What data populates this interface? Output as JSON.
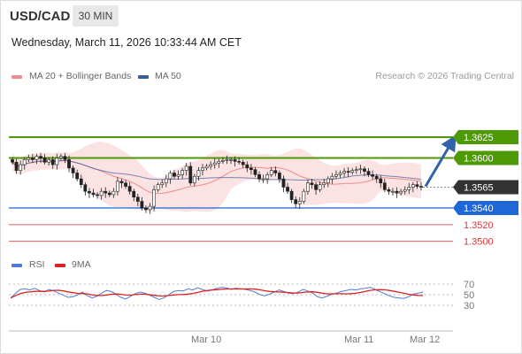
{
  "header": {
    "pair": "USD/CAD",
    "timeframe": "30 MIN",
    "datetime": "Wednesday, March 11, 2026 10:33:44 AM CET"
  },
  "price_legend": [
    {
      "label": "MA 20 + Bollinger Bands",
      "color": "#f08a8a"
    },
    {
      "label": "MA 50",
      "color": "#3b5b9a"
    }
  ],
  "credit": "Research © 2026 Trading Central",
  "price_levels": [
    {
      "value": "1.3625",
      "kind": "resistance",
      "color": "#4e9a06"
    },
    {
      "value": "1.3600",
      "kind": "resistance",
      "color": "#4e9a06"
    },
    {
      "value": "1.3565",
      "kind": "current",
      "color": "#333333"
    },
    {
      "value": "1.3540",
      "kind": "pivot",
      "color": "#1f66d6"
    },
    {
      "value": "1.3520",
      "kind": "support",
      "color": "#d63a3a"
    },
    {
      "value": "1.3500",
      "kind": "support",
      "color": "#d63a3a"
    }
  ],
  "rsi_legend": [
    {
      "label": "RSI",
      "color": "#4f7bd6"
    },
    {
      "label": "9MA",
      "color": "#dd2222"
    }
  ],
  "rsi_levels": [
    "70",
    "50",
    "30"
  ],
  "time_labels": [
    "Mar 10",
    "Mar 11",
    "Mar 12"
  ],
  "chart_data": {
    "type": "candlestick",
    "price_axis_labels": [
      "1.3625",
      "1.3600",
      "1.3565",
      "1.3540",
      "1.3520",
      "1.3500"
    ],
    "close_series": [
      1.3595,
      1.3585,
      1.3592,
      1.3598,
      1.36,
      1.3598,
      1.3602,
      1.36,
      1.3595,
      1.3598,
      1.3592,
      1.36,
      1.3602,
      1.3598,
      1.3588,
      1.3582,
      1.3575,
      1.3568,
      1.356,
      1.3558,
      1.3556,
      1.3555,
      1.356,
      1.3558,
      1.3556,
      1.356,
      1.3572,
      1.357,
      1.3566,
      1.356,
      1.3553,
      1.3548,
      1.354,
      1.3538,
      1.3542,
      1.3562,
      1.3568,
      1.357,
      1.3575,
      1.3582,
      1.3578,
      1.358,
      1.3585,
      1.359,
      1.357,
      1.3578,
      1.3585,
      1.3588,
      1.359,
      1.3592,
      1.3594,
      1.3596,
      1.3597,
      1.3598,
      1.3598,
      1.3596,
      1.3595,
      1.3592,
      1.3588,
      1.3586,
      1.358,
      1.3575,
      1.3575,
      1.358,
      1.3585,
      1.3582,
      1.3575,
      1.3565,
      1.356,
      1.355,
      1.3545,
      1.3548,
      1.356,
      1.357,
      1.3568,
      1.3562,
      1.3568,
      1.357,
      1.3575,
      1.3578,
      1.358,
      1.3582,
      1.3584,
      1.3583,
      1.3585,
      1.3586,
      1.3587,
      1.3584,
      1.358,
      1.3578,
      1.3575,
      1.357,
      1.3562,
      1.356,
      1.356,
      1.3558,
      1.356,
      1.3562,
      1.3565,
      1.3568,
      1.3566,
      1.3565
    ],
    "forecast": {
      "from": "1.3565",
      "to": "1.3625",
      "direction": "up"
    },
    "rsi": {
      "levels": [
        70,
        50,
        30
      ],
      "values": [
        44,
        52,
        60,
        61,
        59,
        62,
        58,
        55,
        60,
        57,
        53,
        49,
        45,
        46,
        50,
        55,
        48,
        44,
        47,
        53,
        58,
        56,
        51,
        45,
        42,
        47,
        52,
        55,
        53,
        49,
        45,
        41,
        44,
        50,
        56,
        58,
        57,
        61,
        59,
        63,
        60,
        57,
        59,
        62,
        64,
        63,
        60,
        62,
        61,
        60,
        58,
        55,
        50,
        48,
        51,
        55,
        59,
        56,
        53,
        52,
        55,
        60,
        57,
        53,
        46,
        44,
        47,
        51,
        53,
        56,
        58,
        60,
        59,
        61,
        62,
        64,
        60,
        56,
        52,
        48,
        45,
        44,
        43,
        46,
        51,
        53,
        55
      ]
    }
  }
}
